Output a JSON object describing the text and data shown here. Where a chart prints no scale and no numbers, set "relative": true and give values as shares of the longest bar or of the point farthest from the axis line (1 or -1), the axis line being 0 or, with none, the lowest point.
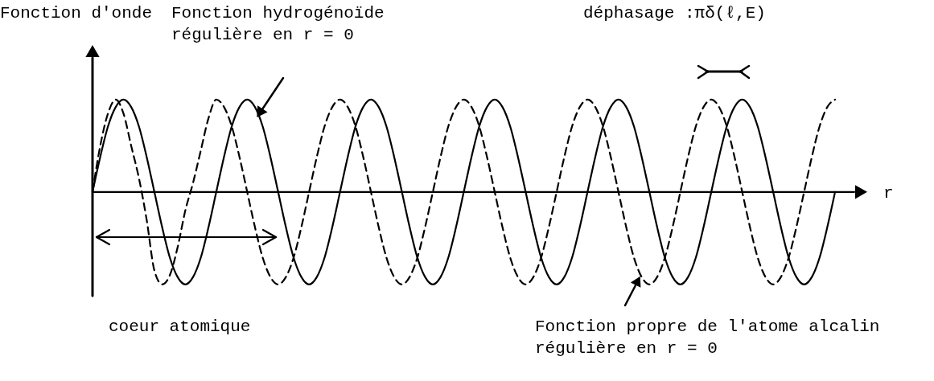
{
  "chart_data": {
    "type": "line",
    "relative": true,
    "legend": false,
    "marker": "none",
    "ylabel": "Fonction d'onde",
    "xlabel": "r",
    "categories": [
      null,
      null,
      null,
      null,
      null,
      null,
      null,
      null,
      null,
      null,
      null,
      null,
      null,
      null,
      null,
      null,
      null,
      null,
      null,
      null,
      null,
      null,
      null,
      null,
      null,
      null,
      null,
      null,
      null,
      null,
      null,
      null,
      null,
      null,
      null,
      null,
      null,
      null,
      null,
      null,
      null,
      null,
      null,
      null,
      null,
      null,
      null,
      null,
      null,
      null,
      null,
      null,
      null,
      null,
      null,
      null,
      null,
      null,
      null,
      null,
      null,
      null,
      null,
      null,
      null,
      null,
      null,
      null,
      null,
      null,
      null,
      null,
      null,
      null,
      null,
      null,
      null,
      null,
      null,
      null,
      null,
      null,
      null,
      null,
      null,
      null,
      null,
      null,
      null,
      null,
      null,
      null,
      null,
      null,
      null,
      null,
      null
    ],
    "series": [
      {
        "color": "#000000",
        "line_style": "solid",
        "values": [
          0,
          0.38,
          0.71,
          0.92,
          1,
          0.92,
          0.71,
          0.38,
          0,
          -0.38,
          -0.71,
          -0.92,
          -1,
          -0.92,
          -0.71,
          -0.38,
          0,
          0.38,
          0.71,
          0.92,
          1,
          0.92,
          0.71,
          0.38,
          0,
          -0.38,
          -0.71,
          -0.92,
          -1,
          -0.92,
          -0.71,
          -0.38,
          0,
          0.38,
          0.71,
          0.92,
          1,
          0.92,
          0.71,
          0.38,
          0,
          -0.38,
          -0.71,
          -0.92,
          -1,
          -0.92,
          -0.71,
          -0.38,
          0,
          0.38,
          0.71,
          0.92,
          1,
          0.92,
          0.71,
          0.38,
          0,
          -0.38,
          -0.71,
          -0.92,
          -1,
          -0.92,
          -0.71,
          -0.38,
          0,
          0.38,
          0.71,
          0.92,
          1,
          0.92,
          0.71,
          0.38,
          0,
          -0.38,
          -0.71,
          -0.92,
          -1,
          -0.92,
          -0.71,
          -0.38,
          0,
          0.38,
          0.71,
          0.92,
          1,
          0.92,
          0.71,
          0.38,
          0,
          -0.38,
          -0.71,
          -0.92,
          -1,
          -0.92,
          -0.71,
          -0.38,
          0
        ]
      },
      {
        "color": "#000000",
        "line_style": "dashed",
        "values": [
          0,
          0.5,
          0.85,
          1,
          0.85,
          0.5,
          0.15,
          -0.3,
          -0.85,
          -1,
          -0.9,
          -0.6,
          -0.2,
          0.1,
          0.45,
          0.8,
          1,
          0.92,
          0.71,
          0.38,
          0,
          -0.38,
          -0.71,
          -0.92,
          -1,
          -0.92,
          -0.71,
          -0.38,
          0,
          0.38,
          0.71,
          0.92,
          1,
          0.92,
          0.71,
          0.38,
          0,
          -0.38,
          -0.71,
          -0.92,
          -1,
          -0.92,
          -0.71,
          -0.38,
          0,
          0.38,
          0.71,
          0.92,
          1,
          0.92,
          0.71,
          0.38,
          0,
          -0.38,
          -0.71,
          -0.92,
          -1,
          -0.92,
          -0.71,
          -0.38,
          0,
          0.38,
          0.71,
          0.92,
          1,
          0.92,
          0.71,
          0.38,
          0,
          -0.38,
          -0.71,
          -0.92,
          -1,
          -0.92,
          -0.71,
          -0.38,
          0,
          0.38,
          0.71,
          0.92,
          1,
          0.92,
          0.71,
          0.38,
          0,
          -0.38,
          -0.71,
          -0.92,
          -1,
          -0.92,
          -0.71,
          -0.38,
          0,
          0.38,
          0.71,
          0.92,
          1
        ]
      }
    ],
    "annotations": [
      "Fonction hydrogénoïde\nrégulière en r = 0",
      "Fonction propre de l'atome alcalin\nrégulière en r = 0",
      "coeur atomique",
      "déphasage :πδ(ℓ,E)"
    ]
  }
}
